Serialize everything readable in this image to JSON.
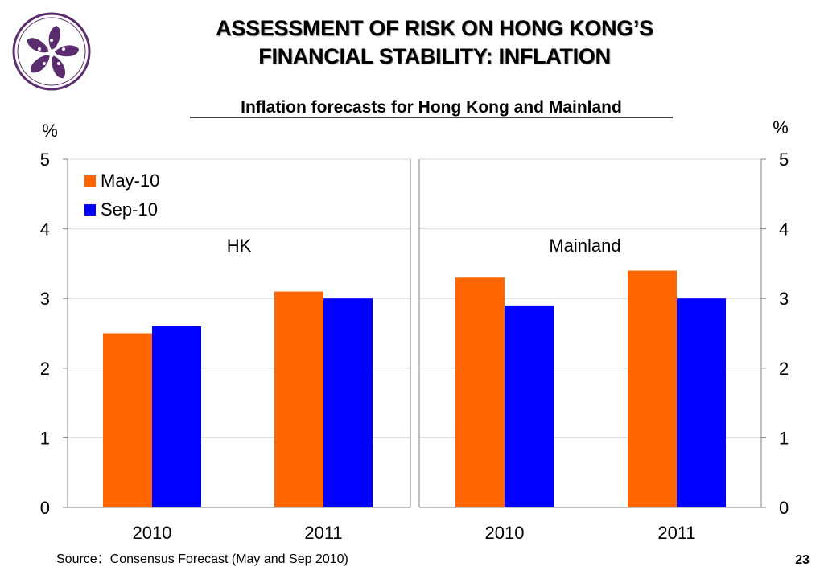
{
  "header": {
    "title_line1": "ASSESSMENT OF RISK ON HONG KONG’S",
    "title_line2": "FINANCIAL STABILITY: INFLATION"
  },
  "colors": {
    "may": "#ff6600",
    "sep": "#0000ff",
    "logo": "#5c2d6e",
    "grid": "#d9d9d9"
  },
  "chart_data": {
    "type": "bar",
    "title": "Inflation forecasts for Hong Kong and Mainland",
    "ylabel_left": "%",
    "ylabel_right": "%",
    "ylim": [
      0,
      5
    ],
    "yticks": [
      "0",
      "1",
      "2",
      "3",
      "4",
      "5"
    ],
    "grid": true,
    "legend_position": "top-left",
    "series": [
      {
        "name": "May-10"
      },
      {
        "name": "Sep-10"
      }
    ],
    "panels": [
      {
        "label": "HK",
        "categories": [
          "2010",
          "2011"
        ],
        "values": [
          [
            2.5,
            3.1
          ],
          [
            2.6,
            3.0
          ]
        ]
      },
      {
        "label": "Mainland",
        "categories": [
          "2010",
          "2011"
        ],
        "values": [
          [
            3.3,
            3.4
          ],
          [
            2.9,
            3.0
          ]
        ]
      }
    ]
  },
  "footer": {
    "source": "Source：Consensus Forecast (May and Sep 2010)",
    "page_number": "23"
  }
}
